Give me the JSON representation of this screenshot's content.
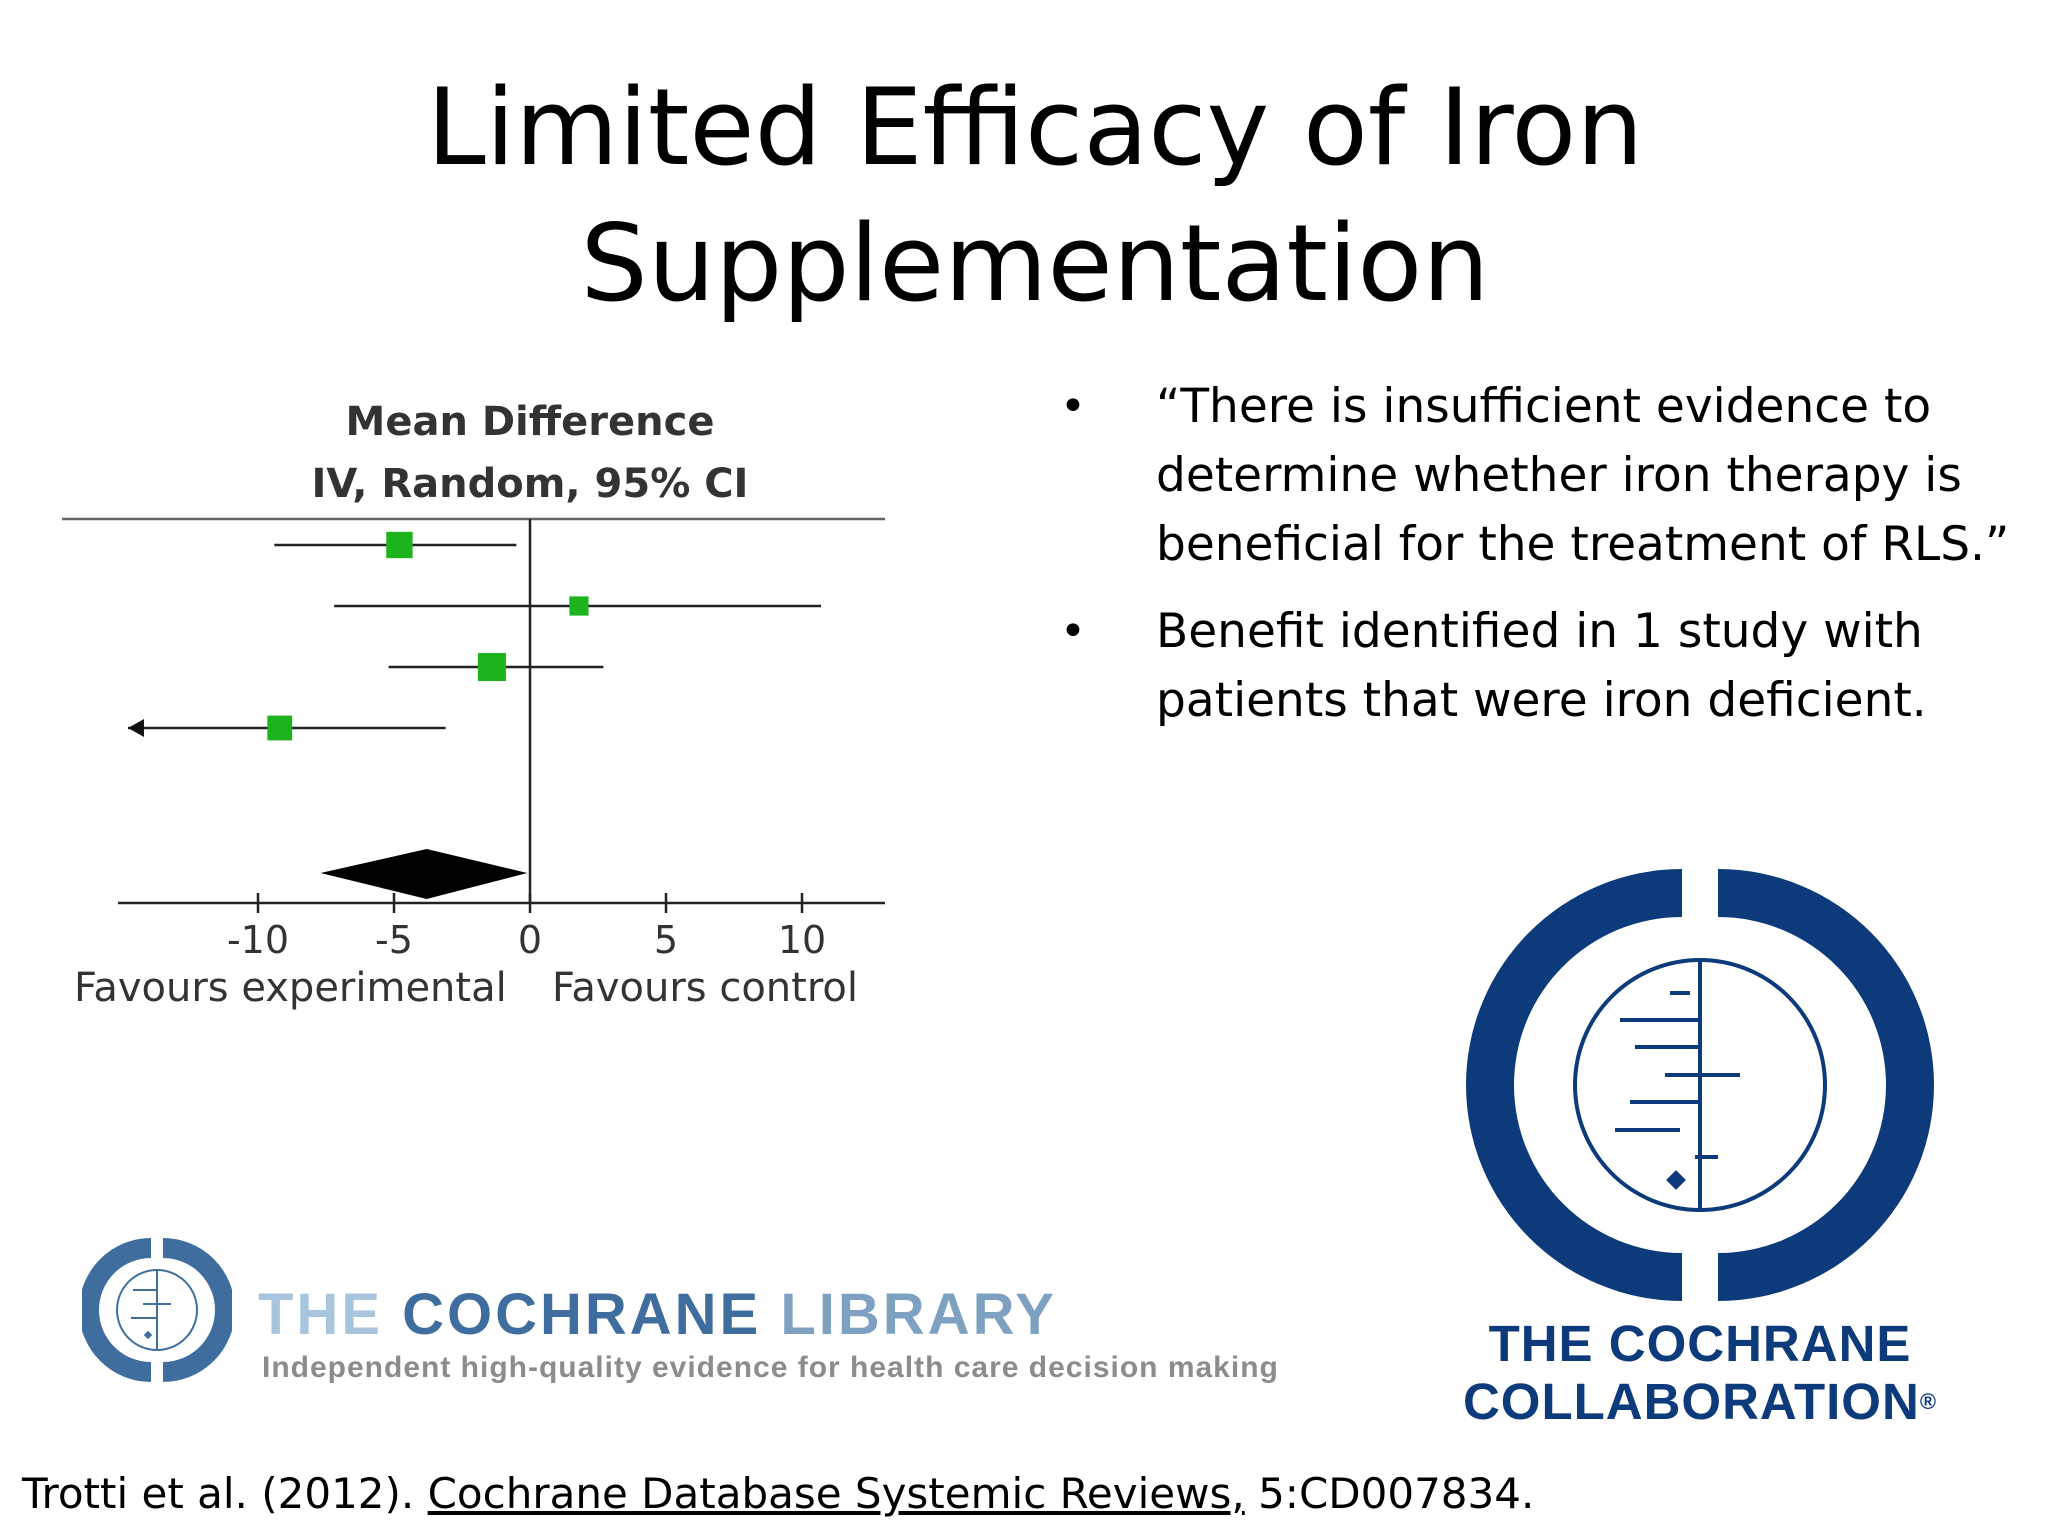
{
  "slide": {
    "title_line1": "Limited Efficacy of Iron",
    "title_line2": "Supplementation",
    "bullets": [
      "“There is insufficient evidence to determine whether iron therapy is beneficial for the treatment of RLS.”",
      "Benefit identified in 1 study with patients that were iron deficient."
    ],
    "bullet_glyph": "•",
    "citation": {
      "authors": "Trotti et al. (2012). ",
      "journal": "Cochrane Database Systemic Reviews,",
      "ref": " 5:CD007834."
    }
  },
  "logos": {
    "collaboration": {
      "line1": "THE COCHRANE",
      "line2": "COLLABORATION",
      "mark": "®",
      "color": "#0d3a7a"
    },
    "library": {
      "word1": "THE",
      "word2": "COCHRANE",
      "word3": "LIBRARY",
      "tagline": "Independent high-quality evidence for health care decision making",
      "color": "#3f6e9e"
    }
  },
  "chart_data": {
    "type": "forest",
    "title_line1": "Mean Difference",
    "title_line2": "IV, Random, 95% CI",
    "xlim": [
      -15,
      13
    ],
    "ticks": [
      -10,
      -5,
      0,
      5,
      10
    ],
    "tick_labels": [
      "-10",
      "-5",
      "0",
      "5",
      "10"
    ],
    "xlabel_left": "Favours experimental",
    "xlabel_right": "Favours control",
    "point_color": "#1db31d",
    "studies": [
      {
        "mean": -4.8,
        "lower": -9.4,
        "upper": -0.5,
        "weight": 0.9,
        "lower_truncated": false
      },
      {
        "mean": 1.8,
        "lower": -7.2,
        "upper": 10.7,
        "weight": 0.45,
        "lower_truncated": false
      },
      {
        "mean": -1.4,
        "lower": -5.2,
        "upper": 2.7,
        "weight": 1.0,
        "lower_truncated": false
      },
      {
        "mean": -9.2,
        "lower": -14.8,
        "upper": -3.1,
        "weight": 0.8,
        "lower_truncated": true
      }
    ],
    "pooled": {
      "mean": -3.8,
      "lower": -7.7,
      "upper": -0.1
    }
  }
}
